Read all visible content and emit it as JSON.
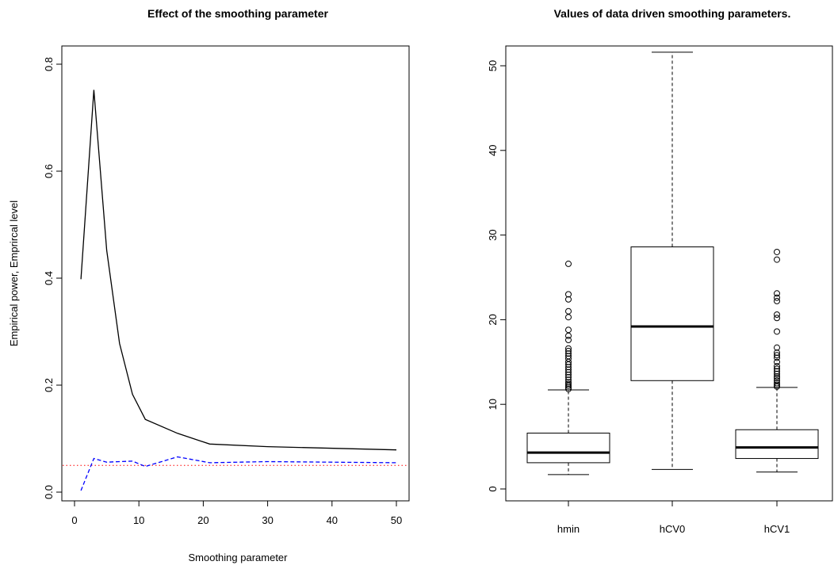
{
  "chart_data": [
    {
      "type": "line",
      "title": "Effect of the smoothing parameter",
      "xlabel": "Smoothing parameter",
      "ylabel": "Empirical power, Emprircal level",
      "xlim": [
        0,
        50
      ],
      "ylim": [
        0,
        0.8
      ],
      "x_ticks": [
        "0",
        "10",
        "20",
        "30",
        "40",
        "50"
      ],
      "y_ticks": [
        "0.0",
        "0.2",
        "0.4",
        "0.6",
        "0.8"
      ],
      "grid": false,
      "series": [
        {
          "style": "solid",
          "color": "#000000",
          "x": [
            1,
            3,
            5,
            7,
            9,
            11,
            16,
            21,
            30,
            50
          ],
          "values": [
            0.398,
            0.752,
            0.452,
            0.278,
            0.183,
            0.136,
            0.11,
            0.09,
            0.085,
            0.079
          ]
        },
        {
          "style": "dashed",
          "color": "#0000ff",
          "x": [
            1,
            3,
            5,
            7,
            9,
            11,
            16,
            21,
            30,
            50
          ],
          "values": [
            0.003,
            0.063,
            0.056,
            0.057,
            0.058,
            0.048,
            0.066,
            0.055,
            0.057,
            0.055
          ]
        }
      ],
      "reference_lines": [
        {
          "y": 0.05,
          "style": "dotted",
          "color": "#ff0000"
        }
      ]
    },
    {
      "type": "box",
      "title": "Values of data driven smoothing parameters.",
      "xlabel": "",
      "ylabel": "",
      "ylim": [
        0,
        50
      ],
      "y_ticks": [
        "0",
        "10",
        "20",
        "30",
        "40",
        "50"
      ],
      "grid": false,
      "categories": [
        "hmin",
        "hCV0",
        "hCV1"
      ],
      "boxes": [
        {
          "whisker_low": 1.7,
          "q1": 3.1,
          "median": 4.3,
          "q3": 6.6,
          "whisker_high": 11.7,
          "outliers": [
            11.8,
            12.0,
            12.2,
            12.4,
            12.6,
            12.9,
            13.2,
            13.5,
            13.8,
            14.1,
            14.4,
            14.7,
            15.0,
            15.4,
            15.7,
            16.0,
            16.3,
            16.6,
            17.6,
            18.1,
            18.8,
            20.3,
            21.0,
            22.4,
            23.0,
            26.6
          ]
        },
        {
          "whisker_low": 2.3,
          "q1": 12.8,
          "median": 19.2,
          "q3": 28.6,
          "whisker_high": 51.6,
          "outliers": []
        },
        {
          "whisker_low": 2.0,
          "q1": 3.6,
          "median": 4.9,
          "q3": 7.0,
          "whisker_high": 12.0,
          "outliers": [
            12.1,
            12.3,
            12.5,
            12.8,
            13.1,
            13.3,
            13.6,
            13.9,
            14.2,
            14.5,
            15.0,
            15.5,
            15.8,
            16.1,
            16.7,
            18.6,
            20.2,
            20.6,
            22.2,
            22.6,
            23.1,
            27.1,
            28.0
          ]
        }
      ]
    }
  ]
}
